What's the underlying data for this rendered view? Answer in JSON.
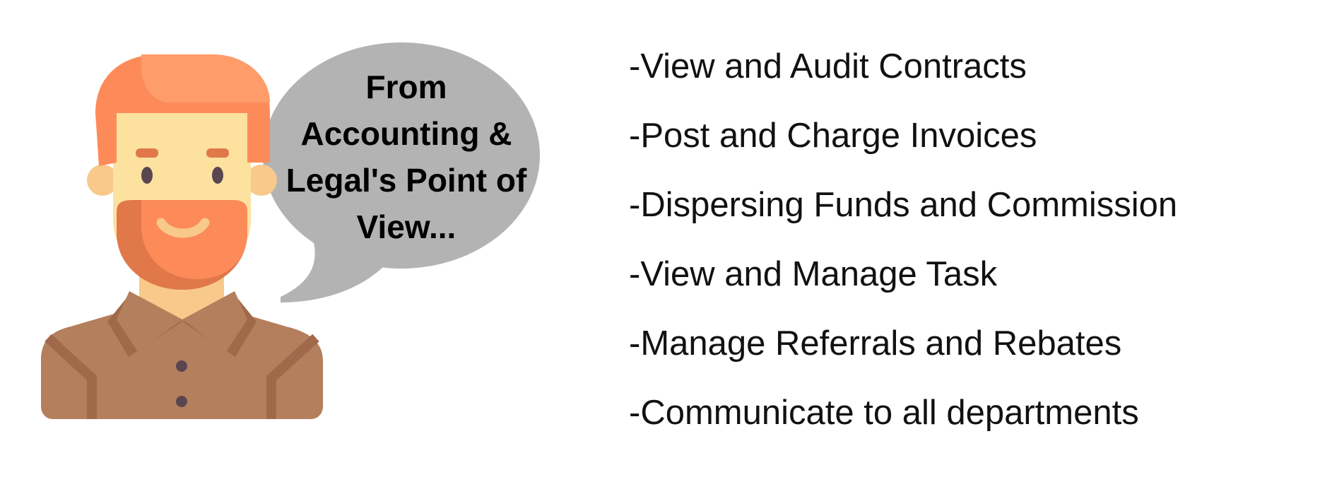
{
  "speech_bubble": {
    "lines": [
      "From",
      "Accounting &",
      "Legal's Point of",
      "View..."
    ]
  },
  "tasks": [
    "-View and Audit Contracts",
    "-Post and Charge Invoices",
    "-Dispersing Funds and Commission",
    "-View and Manage Task",
    "-Manage Referrals and Rebates",
    "-Communicate to all departments"
  ],
  "icons": {
    "person": "bearded-man-avatar-icon",
    "bubble": "speech-bubble-icon"
  },
  "colors": {
    "bubble": "#b3b3b3",
    "hair": "#fd8b5a",
    "skin": "#fde19f",
    "beard": "#fd8b5a",
    "shirt": "#b47f5c"
  }
}
